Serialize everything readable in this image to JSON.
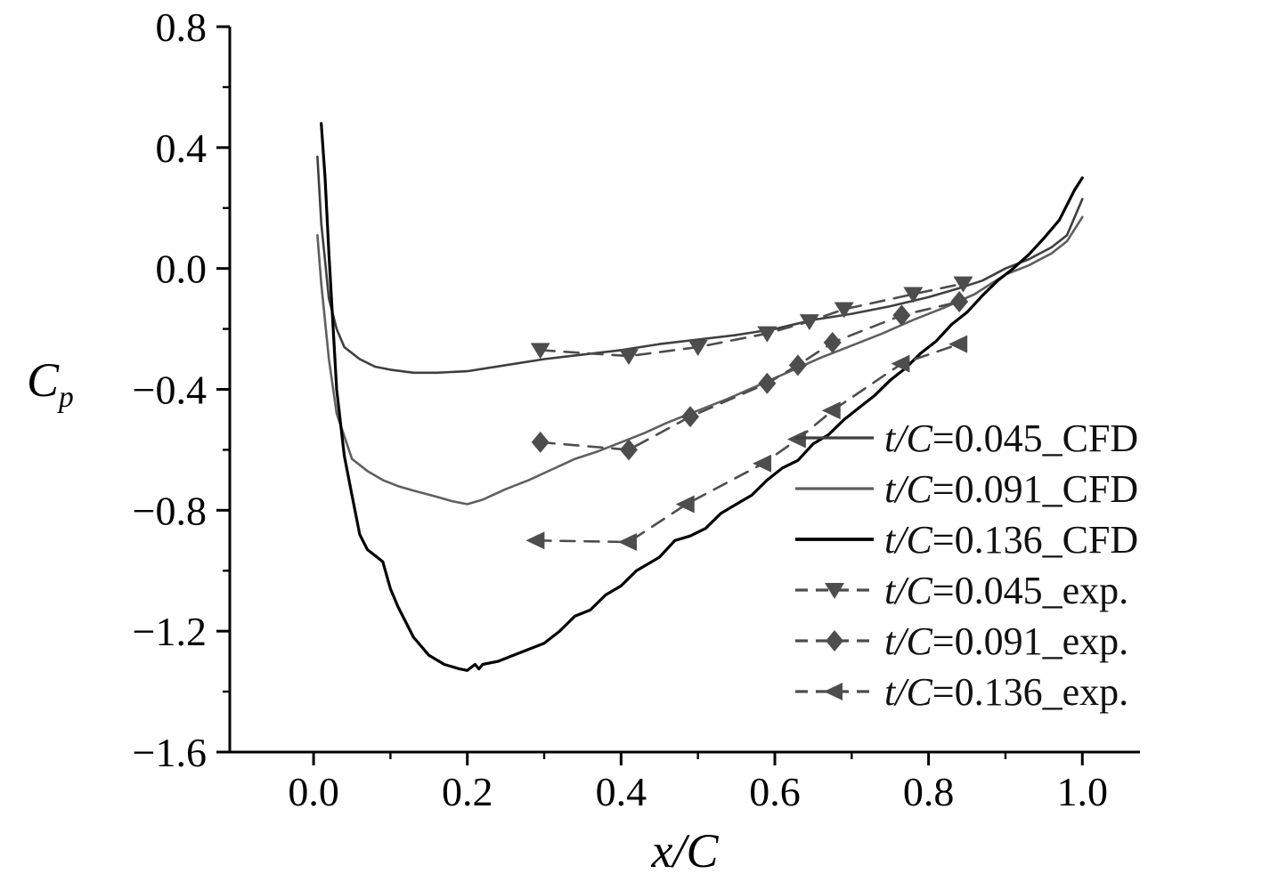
{
  "figure": {
    "background": "#ffffff"
  },
  "chart_data": {
    "type": "line",
    "title": "",
    "xlabel": "x/C",
    "ylabel": "C_p",
    "ylabel_main": "C",
    "ylabel_sub": "p",
    "xlim": [
      -0.109,
      1.075
    ],
    "ylim": [
      -1.6,
      0.8
    ],
    "grid": false,
    "legend_position": "lower-right-inside",
    "x_ticks": [
      0.0,
      0.2,
      0.4,
      0.6,
      0.8,
      1.0
    ],
    "x_tick_labels": [
      "0.0",
      "0.2",
      "0.4",
      "0.6",
      "0.8",
      "1.0"
    ],
    "x_minor_ticks": [
      0.1,
      0.3,
      0.5,
      0.7,
      0.9
    ],
    "y_ticks": [
      0.8,
      0.4,
      0.0,
      -0.4,
      -0.8,
      -1.2,
      -1.6
    ],
    "y_tick_labels": [
      "0.8",
      "0.4",
      "0.0",
      "−0.4",
      "−0.8",
      "−1.2",
      "−1.6"
    ],
    "y_minor_ticks": [
      0.6,
      0.2,
      -0.2,
      -0.6,
      -1.0,
      -1.4
    ],
    "series": [
      {
        "name": "t/C=0.045_CFD",
        "kind": "cfd-line",
        "color": "#3f3f3f",
        "width": 2.6,
        "dash": null,
        "marker": null,
        "x": [
          0.005,
          0.01,
          0.02,
          0.03,
          0.04,
          0.06,
          0.08,
          0.1,
          0.13,
          0.16,
          0.2,
          0.25,
          0.3,
          0.35,
          0.4,
          0.45,
          0.5,
          0.55,
          0.6,
          0.65,
          0.7,
          0.75,
          0.8,
          0.84,
          0.87,
          0.9,
          0.93,
          0.96,
          0.98,
          1.0
        ],
        "y": [
          0.37,
          0.15,
          -0.1,
          -0.2,
          -0.26,
          -0.3,
          -0.325,
          -0.335,
          -0.345,
          -0.345,
          -0.34,
          -0.32,
          -0.3,
          -0.285,
          -0.27,
          -0.25,
          -0.235,
          -0.22,
          -0.2,
          -0.17,
          -0.15,
          -0.125,
          -0.095,
          -0.065,
          -0.04,
          0.0,
          0.03,
          0.07,
          0.11,
          0.23
        ]
      },
      {
        "name": "t/C=0.091_CFD",
        "kind": "cfd-line",
        "color": "#5f5f5f",
        "width": 2.6,
        "dash": null,
        "marker": null,
        "x": [
          0.005,
          0.01,
          0.02,
          0.03,
          0.05,
          0.07,
          0.09,
          0.11,
          0.13,
          0.16,
          0.18,
          0.2,
          0.22,
          0.25,
          0.28,
          0.31,
          0.34,
          0.37,
          0.4,
          0.43,
          0.46,
          0.5,
          0.54,
          0.58,
          0.62,
          0.66,
          0.7,
          0.74,
          0.78,
          0.82,
          0.86,
          0.9,
          0.93,
          0.96,
          0.98,
          1.0
        ],
        "y": [
          0.11,
          -0.05,
          -0.3,
          -0.48,
          -0.63,
          -0.67,
          -0.7,
          -0.72,
          -0.735,
          -0.755,
          -0.77,
          -0.78,
          -0.765,
          -0.73,
          -0.7,
          -0.665,
          -0.63,
          -0.605,
          -0.575,
          -0.545,
          -0.51,
          -0.47,
          -0.43,
          -0.385,
          -0.34,
          -0.295,
          -0.255,
          -0.215,
          -0.17,
          -0.13,
          -0.085,
          -0.02,
          0.01,
          0.05,
          0.09,
          0.17
        ]
      },
      {
        "name": "t/C=0.136_CFD",
        "kind": "cfd-line",
        "color": "#000000",
        "width": 3.2,
        "dash": null,
        "marker": null,
        "x": [
          0.01,
          0.015,
          0.02,
          0.03,
          0.04,
          0.05,
          0.06,
          0.07,
          0.08,
          0.09,
          0.1,
          0.11,
          0.13,
          0.15,
          0.17,
          0.19,
          0.2,
          0.21,
          0.215,
          0.22,
          0.24,
          0.26,
          0.28,
          0.3,
          0.32,
          0.34,
          0.36,
          0.38,
          0.4,
          0.42,
          0.44,
          0.45,
          0.47,
          0.49,
          0.51,
          0.53,
          0.55,
          0.57,
          0.59,
          0.61,
          0.63,
          0.65,
          0.67,
          0.69,
          0.71,
          0.73,
          0.75,
          0.77,
          0.79,
          0.81,
          0.83,
          0.85,
          0.87,
          0.89,
          0.91,
          0.93,
          0.95,
          0.97,
          0.99,
          1.0
        ],
        "y": [
          0.48,
          0.3,
          0.05,
          -0.4,
          -0.62,
          -0.75,
          -0.88,
          -0.93,
          -0.95,
          -0.97,
          -1.06,
          -1.12,
          -1.22,
          -1.28,
          -1.31,
          -1.325,
          -1.33,
          -1.31,
          -1.325,
          -1.31,
          -1.3,
          -1.28,
          -1.26,
          -1.24,
          -1.2,
          -1.15,
          -1.13,
          -1.08,
          -1.05,
          -1.0,
          -0.97,
          -0.955,
          -0.9,
          -0.885,
          -0.86,
          -0.81,
          -0.78,
          -0.75,
          -0.7,
          -0.66,
          -0.635,
          -0.58,
          -0.55,
          -0.5,
          -0.46,
          -0.42,
          -0.37,
          -0.33,
          -0.28,
          -0.24,
          -0.185,
          -0.145,
          -0.09,
          -0.04,
          0.0,
          0.045,
          0.1,
          0.16,
          0.26,
          0.3
        ]
      },
      {
        "name": "t/C=0.045_exp.",
        "kind": "experiment",
        "color": "#4d4d4d",
        "width": 2.6,
        "dash": "16 11",
        "marker": "triangle-down",
        "x": [
          0.295,
          0.41,
          0.5,
          0.59,
          0.645,
          0.69,
          0.78,
          0.845
        ],
        "y": [
          -0.27,
          -0.29,
          -0.26,
          -0.215,
          -0.175,
          -0.135,
          -0.085,
          -0.05
        ]
      },
      {
        "name": "t/C=0.091_exp.",
        "kind": "experiment",
        "color": "#4d4d4d",
        "width": 2.6,
        "dash": "16 11",
        "marker": "diamond",
        "x": [
          0.295,
          0.41,
          0.49,
          0.59,
          0.63,
          0.675,
          0.765,
          0.84
        ],
        "y": [
          -0.575,
          -0.6,
          -0.49,
          -0.38,
          -0.32,
          -0.245,
          -0.155,
          -0.11
        ]
      },
      {
        "name": "t/C=0.136_exp.",
        "kind": "experiment",
        "color": "#4d4d4d",
        "width": 2.6,
        "dash": "16 11",
        "marker": "triangle-left",
        "x": [
          0.29,
          0.41,
          0.485,
          0.585,
          0.63,
          0.675,
          0.765,
          0.84
        ],
        "y": [
          -0.9,
          -0.905,
          -0.78,
          -0.645,
          -0.565,
          -0.47,
          -0.315,
          -0.25
        ]
      }
    ]
  }
}
